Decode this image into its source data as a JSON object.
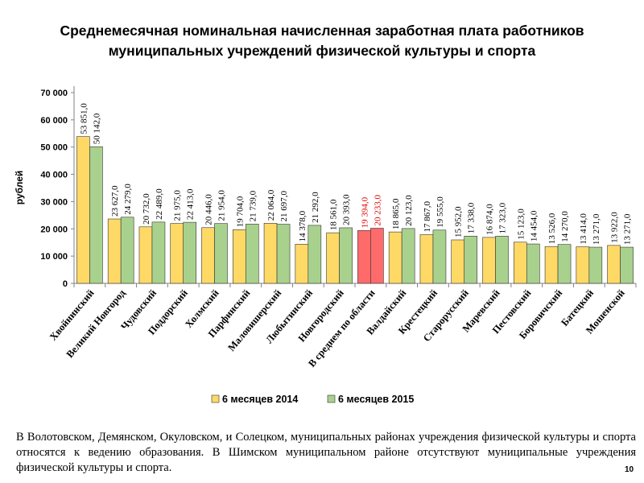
{
  "title_line1": "Среднемесячная номинальная начисленная заработная плата работников",
  "title_line2": "муниципальных учреждений физической культуры и спорта",
  "note": "В Волотовском, Демянском, Окуловском, и Солецком, муниципальных районах учреждения физической культуры и спорта относятся к ведению образования. В Шимском муниципальном районе отсутствуют муниципальные учреждения физической культуры и спорта.",
  "page_number": "10",
  "colors": {
    "series2014": "#ffd966",
    "series2015": "#a9d18e",
    "highlight": "#ff6b6b",
    "highlight_label": "#e00000",
    "bar_stroke": "#333333"
  },
  "chart_data": {
    "type": "bar",
    "title": "Среднемесячная номинальная начисленная заработная плата работников муниципальных учреждений физической культуры и спорта",
    "xlabel": "",
    "ylabel": "рублей",
    "ylim": [
      0,
      70000
    ],
    "yticks": [
      0,
      10000,
      20000,
      30000,
      40000,
      50000,
      60000,
      70000
    ],
    "ytick_labels": [
      "0",
      "10 000",
      "20 000",
      "30 000",
      "40 000",
      "50 000",
      "60 000",
      "70 000"
    ],
    "grid": false,
    "legend_position": "bottom",
    "highlight_category": "В среднем по области",
    "categories": [
      "Хвойнинский",
      "Великий Новгород",
      "Чудовский",
      "Поддорский",
      "Холмский",
      "Парфинский",
      "Маловишерский",
      "Любытинский",
      "Новгородский",
      "В среднем по области",
      "Валдайский",
      "Крестецкий",
      "Старорусский",
      "Маревский",
      "Пестовский",
      "Боровичский",
      "Батецкий",
      "Мошенской"
    ],
    "series": [
      {
        "name": "6 месяцев 2014",
        "values": [
          53851,
          23627,
          20732,
          21975,
          20446,
          19704,
          22064,
          14378,
          18561,
          19394,
          18865,
          17867,
          15952,
          16874,
          15123,
          13526,
          13414,
          13922
        ],
        "labels": [
          "53 851,0",
          "23 627,0",
          "20 732,0",
          "21 975,0",
          "20 446,0",
          "19 704,0",
          "22 064,0",
          "14 378,0",
          "18 561,0",
          "19 394,0",
          "18 865,0",
          "17 867,0",
          "15 952,0",
          "16 874,0",
          "15 123,0",
          "13 526,0",
          "13 414,0",
          "13 922,0"
        ]
      },
      {
        "name": "6 месяцев 2015",
        "values": [
          50142,
          24279,
          22489,
          22413,
          21954,
          21739,
          21697,
          21292,
          20393,
          20233,
          20123,
          19555,
          17338,
          17323,
          14454,
          14270,
          13271,
          13271
        ],
        "labels": [
          "50 142,0",
          "24 279,0",
          "22 489,0",
          "22 413,0",
          "21 954,0",
          "21 739,0",
          "21 697,0",
          "21 292,0",
          "20 393,0",
          "20 233,0",
          "20 123,0",
          "19 555,0",
          "17 338,0",
          "17 323,0",
          "14 454,0",
          "14 270,0",
          "13 271,0",
          "13 271,0"
        ]
      }
    ]
  }
}
